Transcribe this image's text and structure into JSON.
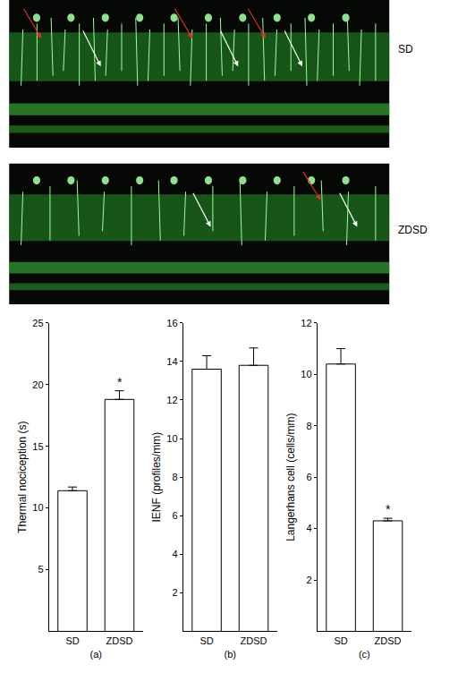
{
  "images": [
    {
      "label": "SD"
    },
    {
      "label": "ZDSD"
    }
  ],
  "chart_data": [
    {
      "type": "bar",
      "x_label": "(a)",
      "y_label": "Thermal nociception (s)",
      "categories": [
        "SD",
        "ZDSD"
      ],
      "values": [
        11.4,
        18.8
      ],
      "errors": [
        0.3,
        0.7
      ],
      "color": "#ffffff",
      "ylim": [
        0,
        25
      ],
      "yticks": [
        5,
        10,
        15,
        20,
        25
      ],
      "annotations": [
        {
          "category": "ZDSD",
          "text": "*"
        }
      ]
    },
    {
      "type": "bar",
      "x_label": "(b)",
      "y_label": "IENF (profiles/mm)",
      "categories": [
        "SD",
        "ZDSD"
      ],
      "values": [
        13.6,
        13.8
      ],
      "errors": [
        0.7,
        0.9
      ],
      "color": "#ffffff",
      "ylim": [
        0,
        16
      ],
      "yticks": [
        2,
        4,
        6,
        8,
        10,
        12,
        14,
        16
      ]
    },
    {
      "type": "bar",
      "x_label": "(c)",
      "y_label": "Langerhans cell (cells/mm)",
      "categories": [
        "SD",
        "ZDSD"
      ],
      "values": [
        10.4,
        4.3
      ],
      "errors": [
        0.6,
        0.1
      ],
      "color": "#ffffff",
      "ylim": [
        0,
        12
      ],
      "yticks": [
        2,
        4,
        6,
        8,
        10,
        12
      ],
      "annotations": [
        {
          "category": "ZDSD",
          "text": "*"
        }
      ]
    }
  ]
}
